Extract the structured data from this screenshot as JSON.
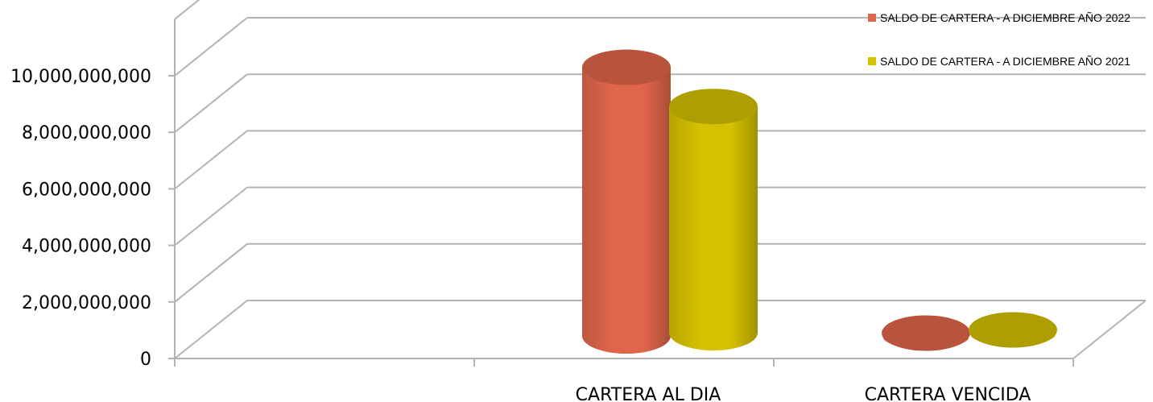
{
  "chart_data": {
    "type": "bar",
    "style": "3d-cylinder",
    "categories": [
      "",
      "CARTERA AL DIA",
      "CARTERA VENCIDA"
    ],
    "series": [
      {
        "name": "SALDO DE CARTERA - A DICIEMBRE AÑO 2022",
        "color": "#e0664b",
        "values": [
          null,
          9500000000,
          100000000
        ]
      },
      {
        "name": "SALDO DE CARTERA - A DICIEMBRE AÑO 2021",
        "color": "#d6c100",
        "values": [
          null,
          8000000000,
          100000000
        ]
      }
    ],
    "ylim": [
      0,
      10000000000
    ],
    "yticks": [
      "0",
      "2,000,000,000",
      "4,000,000,000",
      "6,000,000,000",
      "8,000,000,000",
      "10,000,000,000"
    ],
    "ytick_values": [
      0,
      2000000000,
      4000000000,
      6000000000,
      8000000000,
      10000000000
    ],
    "grid": true,
    "legend": "top-right"
  }
}
